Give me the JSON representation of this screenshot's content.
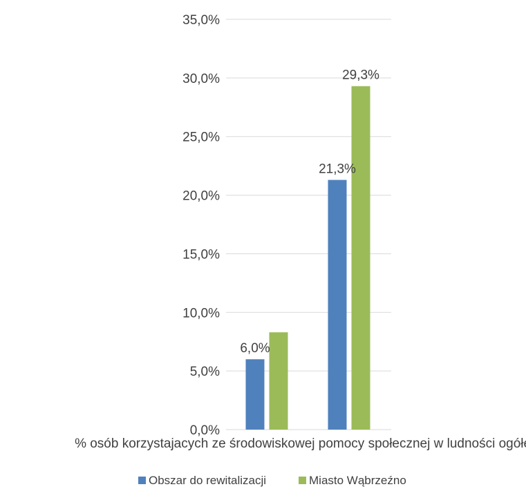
{
  "chart_data": {
    "type": "bar",
    "categories": [
      "",
      "% osób korzystajacych ze środowiskowej pomocy społecznej w ludności ogółem"
    ],
    "series": [
      {
        "name": "Obszar do rewitalizacji",
        "color": "#4f81bd",
        "values": [
          6.0,
          21.3
        ],
        "labels": [
          "6,0%",
          "21,3%"
        ]
      },
      {
        "name": "Miasto Wąbrzeźno",
        "color": "#9bbb59",
        "values": [
          8.3,
          29.3
        ],
        "labels": [
          "",
          "29,3%"
        ]
      }
    ],
    "ylim": [
      0,
      35
    ],
    "y_ticks": [
      "0,0%",
      "5,0%",
      "10,0%",
      "15,0%",
      "20,0%",
      "25,0%",
      "30,0%",
      "35,0%"
    ],
    "grid": true,
    "legend_position": "bottom"
  }
}
